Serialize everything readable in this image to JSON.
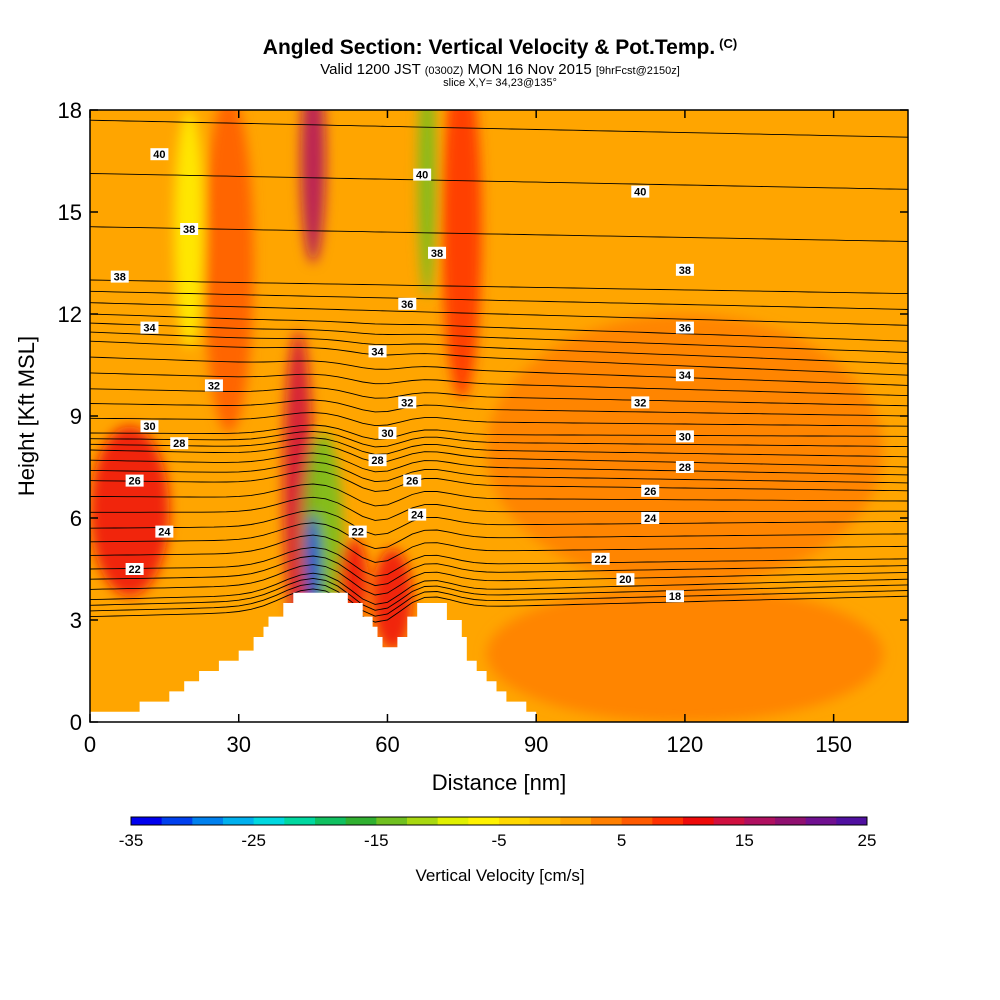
{
  "header": {
    "title": "Angled Section: Vertical Velocity & Pot.Temp.",
    "title_tag": "(C)",
    "subtitle_main": "Valid 1200 JST",
    "subtitle_utc": "(0300Z)",
    "subtitle_date": "MON 16 Nov 2015",
    "subtitle_fcst": "[9hrFcst@2150z]",
    "slice": "slice X,Y= 34,23@135°"
  },
  "chart_data": {
    "type": "heatmap",
    "xlabel": "Distance [nm]",
    "ylabel": "Height [Kft MSL]",
    "xlim": [
      0,
      165
    ],
    "ylim": [
      0,
      18
    ],
    "x_ticks": [
      "0",
      "30",
      "60",
      "90",
      "120",
      "150"
    ],
    "x_tick_values": [
      0,
      30,
      60,
      90,
      120,
      150
    ],
    "y_ticks": [
      "0",
      "3",
      "6",
      "9",
      "12",
      "15",
      "18"
    ],
    "y_tick_values": [
      0,
      3,
      6,
      9,
      12,
      15,
      18
    ],
    "fill_variable": "Vertical Velocity [cm/s]",
    "contour_variable": "Pot.Temp. (C)",
    "colorbar": {
      "label": "Vertical Velocity [cm/s]",
      "min": -35,
      "max": 25,
      "step": 2.5,
      "tick_labels": [
        "-35",
        "-25",
        "-15",
        "-5",
        "5",
        "15",
        "25"
      ],
      "tick_values": [
        -35,
        -25,
        -15,
        -5,
        5,
        15,
        25
      ],
      "colors": [
        "#0000ee",
        "#0040ee",
        "#0080ee",
        "#00b0ee",
        "#00d8e0",
        "#00d8a0",
        "#10c060",
        "#30b030",
        "#70c020",
        "#a8d810",
        "#e0f000",
        "#fff200",
        "#ffd800",
        "#ffc000",
        "#ffa500",
        "#ff7f00",
        "#ff5a00",
        "#ff3000",
        "#ee0a0a",
        "#d01040",
        "#b01060",
        "#901070",
        "#701090",
        "#5010a0"
      ]
    },
    "terrain": [
      [
        0,
        0.3
      ],
      [
        10,
        0.3
      ],
      [
        10,
        0.6
      ],
      [
        16,
        0.6
      ],
      [
        16,
        0.9
      ],
      [
        19,
        0.9
      ],
      [
        19,
        1.2
      ],
      [
        22,
        1.2
      ],
      [
        22,
        1.5
      ],
      [
        26,
        1.5
      ],
      [
        26,
        1.8
      ],
      [
        30,
        1.8
      ],
      [
        30,
        2.1
      ],
      [
        33,
        2.1
      ],
      [
        33,
        2.5
      ],
      [
        35,
        2.5
      ],
      [
        35,
        2.8
      ],
      [
        36,
        2.8
      ],
      [
        36,
        3.1
      ],
      [
        39,
        3.1
      ],
      [
        39,
        3.5
      ],
      [
        41,
        3.5
      ],
      [
        41,
        3.8
      ],
      [
        52,
        3.8
      ],
      [
        52,
        3.5
      ],
      [
        55,
        3.5
      ],
      [
        55,
        3.1
      ],
      [
        57,
        3.1
      ],
      [
        57,
        2.8
      ],
      [
        58,
        2.8
      ],
      [
        58,
        2.5
      ],
      [
        59,
        2.5
      ],
      [
        59,
        2.2
      ],
      [
        62,
        2.2
      ],
      [
        62,
        2.5
      ],
      [
        64,
        2.5
      ],
      [
        64,
        3.1
      ],
      [
        66,
        3.1
      ],
      [
        66,
        3.5
      ],
      [
        72,
        3.5
      ],
      [
        72,
        3.0
      ],
      [
        75,
        3.0
      ],
      [
        75,
        2.5
      ],
      [
        76,
        2.5
      ],
      [
        76,
        1.8
      ],
      [
        78,
        1.8
      ],
      [
        78,
        1.5
      ],
      [
        80,
        1.5
      ],
      [
        80,
        1.2
      ],
      [
        82,
        1.2
      ],
      [
        82,
        0.9
      ],
      [
        84,
        0.9
      ],
      [
        84,
        0.6
      ],
      [
        88,
        0.6
      ],
      [
        88,
        0.3
      ],
      [
        90,
        0.3
      ],
      [
        90,
        0.0
      ]
    ],
    "vertical_velocity_cells": [
      {
        "x": 8,
        "y": 6.2,
        "sx": 8,
        "sy": 2.5,
        "value": 12
      },
      {
        "x": 20,
        "y": 14.5,
        "sx": 3,
        "sy": 3.5,
        "value": -6
      },
      {
        "x": 28,
        "y": 13.5,
        "sx": 5,
        "sy": 5,
        "value": 7
      },
      {
        "x": 42,
        "y": 7.0,
        "sx": 3,
        "sy": 4.5,
        "value": 14
      },
      {
        "x": 45,
        "y": 16.5,
        "sx": 2.5,
        "sy": 3,
        "value": 15
      },
      {
        "x": 47,
        "y": 5.5,
        "sx": 4,
        "sy": 3,
        "value": -15
      },
      {
        "x": 45,
        "y": 4.6,
        "sx": 1.5,
        "sy": 1.5,
        "value": -32
      },
      {
        "x": 68,
        "y": 16.0,
        "sx": 1.8,
        "sy": 3.5,
        "value": -13
      },
      {
        "x": 75,
        "y": 14.5,
        "sx": 4,
        "sy": 5,
        "value": 9
      },
      {
        "x": 61,
        "y": 3.6,
        "sx": 4,
        "sy": 1.5,
        "value": 12
      },
      {
        "x": 53,
        "y": 4.2,
        "sx": 3,
        "sy": 1.2,
        "value": 10
      },
      {
        "x": 120,
        "y": 8.0,
        "sx": 40,
        "sy": 4,
        "value": 3
      },
      {
        "x": 120,
        "y": 2.0,
        "sx": 40,
        "sy": 2,
        "value": 3
      }
    ],
    "theta_contours": [
      {
        "label": "40",
        "y0": 17.7,
        "y1": 17.2
      },
      {
        "label": "38",
        "y0": 13.0,
        "y1": 12.6
      },
      {
        "label": "36",
        "y0": 12.0,
        "y1": 11.2
      },
      {
        "label": "34",
        "y0": 11.2,
        "y1": 10.2
      },
      {
        "label": "32",
        "y0": 9.8,
        "y1": 9.3
      },
      {
        "label": "30",
        "y0": 8.5,
        "y1": 8.4
      },
      {
        "label": "28",
        "y0": 8.0,
        "y1": 7.5
      },
      {
        "label": "26",
        "y0": 7.1,
        "y1": 6.8
      },
      {
        "label": "24",
        "y0": 5.7,
        "y1": 5.9
      },
      {
        "label": "22",
        "y0": 4.5,
        "y1": 4.8
      },
      {
        "label": "20",
        "y0": null,
        "y1": 4.2
      },
      {
        "label": "18",
        "y0": null,
        "y1": 3.7
      }
    ],
    "contour_labels": [
      {
        "text": "40",
        "x": 14,
        "y": 16.7
      },
      {
        "text": "40",
        "x": 67,
        "y": 16.1
      },
      {
        "text": "40",
        "x": 111,
        "y": 15.6
      },
      {
        "text": "38",
        "x": 20,
        "y": 14.5
      },
      {
        "text": "38",
        "x": 6,
        "y": 13.1
      },
      {
        "text": "38",
        "x": 70,
        "y": 13.8
      },
      {
        "text": "38",
        "x": 120,
        "y": 13.3
      },
      {
        "text": "36",
        "x": 64,
        "y": 12.3
      },
      {
        "text": "36",
        "x": 120,
        "y": 11.6
      },
      {
        "text": "34",
        "x": 12,
        "y": 11.6
      },
      {
        "text": "34",
        "x": 58,
        "y": 10.9
      },
      {
        "text": "34",
        "x": 120,
        "y": 10.2
      },
      {
        "text": "32",
        "x": 25,
        "y": 9.9
      },
      {
        "text": "32",
        "x": 64,
        "y": 9.4
      },
      {
        "text": "32",
        "x": 111,
        "y": 9.4
      },
      {
        "text": "30",
        "x": 12,
        "y": 8.7
      },
      {
        "text": "30",
        "x": 60,
        "y": 8.5
      },
      {
        "text": "30",
        "x": 120,
        "y": 8.4
      },
      {
        "text": "28",
        "x": 18,
        "y": 8.2
      },
      {
        "text": "28",
        "x": 58,
        "y": 7.7
      },
      {
        "text": "28",
        "x": 120,
        "y": 7.5
      },
      {
        "text": "26",
        "x": 9,
        "y": 7.1
      },
      {
        "text": "26",
        "x": 65,
        "y": 7.1
      },
      {
        "text": "26",
        "x": 113,
        "y": 6.8
      },
      {
        "text": "24",
        "x": 15,
        "y": 5.6
      },
      {
        "text": "24",
        "x": 66,
        "y": 6.1
      },
      {
        "text": "24",
        "x": 113,
        "y": 6.0
      },
      {
        "text": "22",
        "x": 9,
        "y": 4.5
      },
      {
        "text": "22",
        "x": 54,
        "y": 5.6
      },
      {
        "text": "22",
        "x": 103,
        "y": 4.8
      },
      {
        "text": "20",
        "x": 108,
        "y": 4.2
      },
      {
        "text": "18",
        "x": 118,
        "y": 3.7
      }
    ]
  }
}
